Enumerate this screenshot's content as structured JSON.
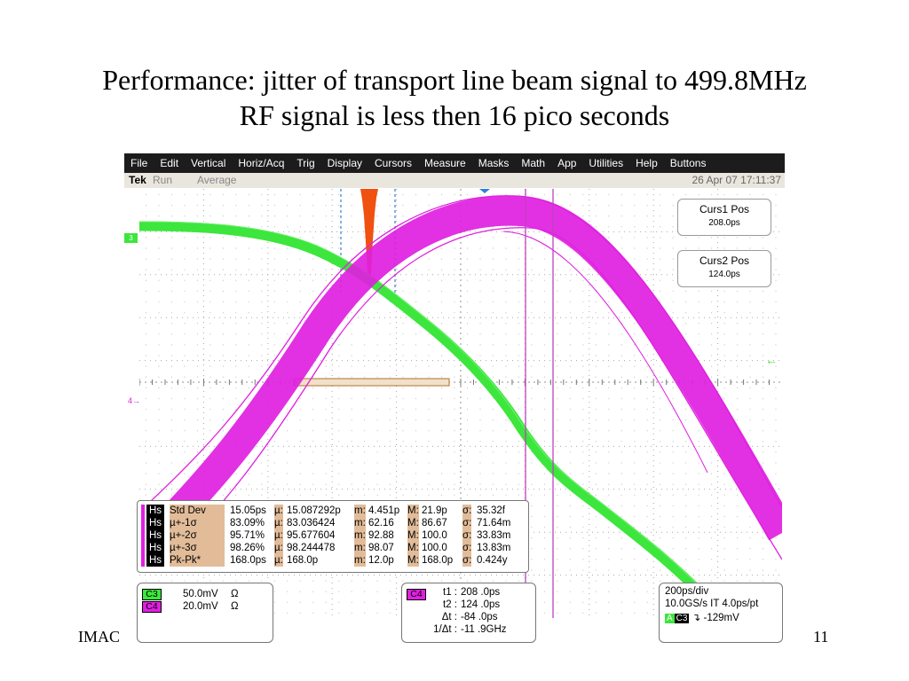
{
  "slide": {
    "title_line1": "Performance: jitter of transport line beam signal to 499.8MHz",
    "title_line2": "RF signal is less then 16 pico seconds",
    "footer_left": "IMAC",
    "page_number": "11"
  },
  "menu": [
    "File",
    "Edit",
    "Vertical",
    "Horiz/Acq",
    "Trig",
    "Display",
    "Cursors",
    "Measure",
    "Masks",
    "Math",
    "App",
    "Utilities",
    "Help",
    "Buttons"
  ],
  "status": {
    "brand": "Tek",
    "run_state": "Run",
    "acq_mode": "Average",
    "datetime": "26 Apr 07 17:11:37"
  },
  "markers": {
    "ch3": "3",
    "ch4": "4"
  },
  "cursors": {
    "curs1_label": "Curs1 Pos",
    "curs1_value": "208.0ps",
    "curs2_label": "Curs2 Pos",
    "curs2_value": "124.0ps"
  },
  "measurements": [
    {
      "tag": "Hs",
      "name": "Std Dev",
      "value": "15.05ps",
      "mu_label": "µ:",
      "mu": "15.087292p",
      "m_label": "m:",
      "m": "4.451p",
      "M_label": "M:",
      "M": "21.9p",
      "sigma_label": "σ:",
      "sigma": "35.32f"
    },
    {
      "tag": "Hs",
      "name": "µ+-1σ",
      "value": "83.09%",
      "mu_label": "µ:",
      "mu": "83.036424",
      "m_label": "m:",
      "m": "62.16",
      "M_label": "M:",
      "M": "86.67",
      "sigma_label": "σ:",
      "sigma": "71.64m"
    },
    {
      "tag": "Hs",
      "name": "µ+-2σ",
      "value": "95.71%",
      "mu_label": "µ:",
      "mu": "95.677604",
      "m_label": "m:",
      "m": "92.88",
      "M_label": "M:",
      "M": "100.0",
      "sigma_label": "σ:",
      "sigma": "33.83m"
    },
    {
      "tag": "Hs",
      "name": "µ+-3σ",
      "value": "98.26%",
      "mu_label": "µ:",
      "mu": "98.244478",
      "m_label": "m:",
      "m": "98.07",
      "M_label": "M:",
      "M": "100.0",
      "sigma_label": "σ:",
      "sigma": "13.83m"
    },
    {
      "tag": "Hs",
      "name": "Pk-Pk*",
      "value": "168.0ps",
      "mu_label": "µ:",
      "mu": "168.0p",
      "m_label": "m:",
      "m": "12.0p",
      "M_label": "M:",
      "M": "168.0p",
      "sigma_label": "σ:",
      "sigma": "0.424y"
    }
  ],
  "channels": [
    {
      "name": "C3",
      "scale": "50.0mV",
      "unit": "Ω",
      "color": "#3ce63c"
    },
    {
      "name": "C4",
      "scale": "20.0mV",
      "unit": "Ω",
      "color": "#e020e0"
    }
  ],
  "cursor_readout": {
    "channel": "C4",
    "t1_label": "t1 :",
    "t1": "208 .0ps",
    "t2_label": "t2 :",
    "t2": "124 .0ps",
    "dt_label": "Δt :",
    "dt": "-84 .0ps",
    "inv_label": "1/Δt :",
    "inv": "-11 .9GHz"
  },
  "timebase": {
    "horizontal": "200ps/div",
    "sample": "10.0GS/s IT 4.0ps/pt",
    "trig_mode": "A",
    "trig_source": "C3",
    "trig_slope": "↴",
    "trig_level": "-129mV"
  },
  "colors": {
    "ch3_trace": "#3ce63c",
    "ch4_trace": "#e020e0",
    "histogram": "#f05010",
    "cursor_line": "#c040c0",
    "background": "#ffffff",
    "menubar": "#1c1c1c"
  }
}
